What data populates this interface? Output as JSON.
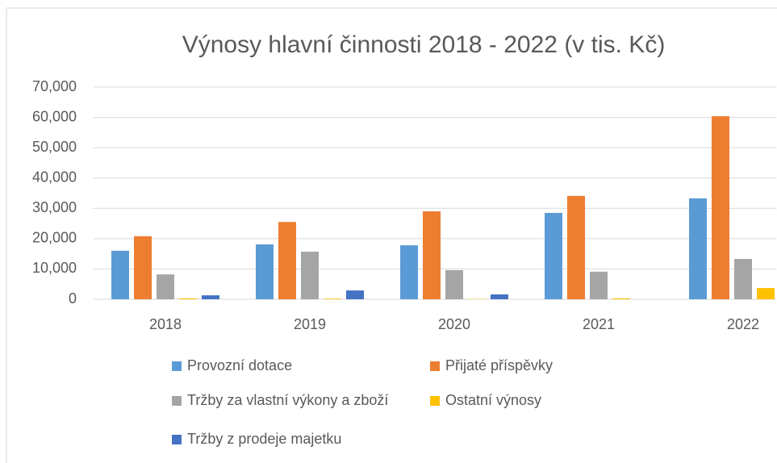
{
  "chart_data": {
    "type": "bar",
    "title": "Výnosy hlavní činnosti 2018 - 2022 (v tis. Kč)",
    "categories": [
      "2018",
      "2019",
      "2020",
      "2021",
      "2022"
    ],
    "series": [
      {
        "name": "Provozní dotace",
        "color": "#5b9bd5",
        "values": [
          16000,
          18100,
          17800,
          28500,
          33300
        ]
      },
      {
        "name": "Přijaté příspěvky",
        "color": "#ed7d31",
        "values": [
          20800,
          25500,
          29000,
          34100,
          60400
        ]
      },
      {
        "name": "Tržby za vlastní výkony a zboží",
        "color": "#a5a5a5",
        "values": [
          8200,
          15700,
          9600,
          9100,
          13300
        ]
      },
      {
        "name": "Ostatní výnosy",
        "color": "#ffc000",
        "values": [
          300,
          200,
          100,
          300,
          3700
        ]
      },
      {
        "name": "Tržby z prodeje majetku",
        "color": "#4472c4",
        "values": [
          1300,
          2900,
          1600,
          0,
          0
        ]
      }
    ],
    "ylim": [
      0,
      70000
    ],
    "yticks": [
      0,
      {
        "value": 10000,
        "label": "10,000"
      },
      {
        "value": 20000,
        "label": "20,000"
      },
      {
        "value": 30000,
        "label": "30,000"
      },
      {
        "value": 40000,
        "label": "40,000"
      },
      {
        "value": 50000,
        "label": "50,000"
      },
      {
        "value": 60000,
        "label": "60,000"
      },
      {
        "value": 70000,
        "label": "70,000"
      }
    ],
    "grid": true
  }
}
